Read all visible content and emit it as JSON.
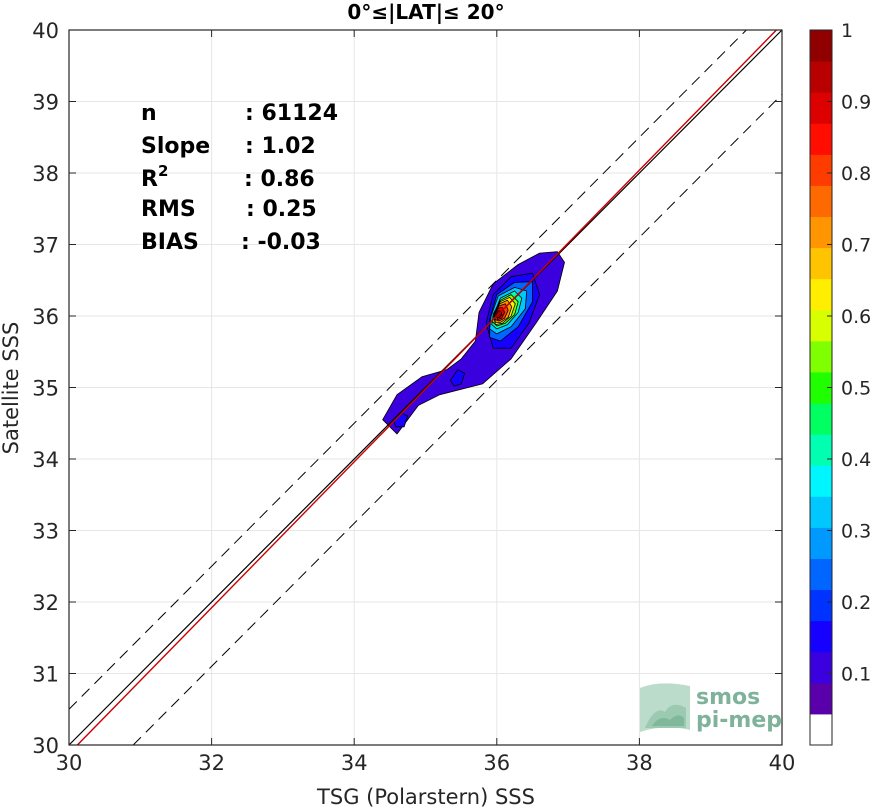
{
  "chart_data": {
    "type": "heatmap",
    "title": "0°≤|LAT|≤ 20°",
    "xlabel": "TSG (Polarstern) SSS",
    "ylabel": "Satellite SSS",
    "xlim": [
      30,
      40
    ],
    "ylim": [
      30,
      40
    ],
    "xticks": [
      30,
      32,
      34,
      36,
      38,
      40
    ],
    "yticks": [
      30,
      31,
      32,
      33,
      34,
      35,
      36,
      37,
      38,
      39,
      40
    ],
    "grid": true,
    "statistics": [
      {
        "name": "n",
        "value": ": 61124"
      },
      {
        "name": "Slope",
        "value": ": 1.02"
      },
      {
        "name": "R",
        "sup": "2",
        "value": ": 0.86"
      },
      {
        "name": "RMS",
        "value": ": 0.25"
      },
      {
        "name": "BIAS",
        "value": ": -0.03"
      }
    ],
    "reference_lines": [
      {
        "type": "identity",
        "slope": 1,
        "offset": 0,
        "style": "solid-black"
      },
      {
        "type": "regression",
        "slope": 1.02,
        "style": "solid-red"
      },
      {
        "type": "bound",
        "offset": 0.5,
        "style": "dashed-black"
      },
      {
        "type": "bound",
        "offset": -0.9,
        "style": "dashed-black"
      }
    ],
    "density_peak": {
      "x": 36.02,
      "y": 36.03
    },
    "contour_levels": [
      0.05,
      0.1,
      0.2,
      0.3,
      0.4,
      0.5,
      0.6,
      0.7,
      0.8,
      0.9,
      1.0
    ],
    "contours": [
      {
        "level": 0.05,
        "points": [
          [
            34.4,
            34.55
          ],
          [
            34.6,
            34.9
          ],
          [
            34.95,
            35.15
          ],
          [
            35.3,
            35.25
          ],
          [
            35.5,
            35.4
          ],
          [
            35.7,
            35.65
          ],
          [
            35.75,
            36.05
          ],
          [
            35.95,
            36.45
          ],
          [
            36.3,
            36.72
          ],
          [
            36.6,
            36.88
          ],
          [
            36.85,
            36.9
          ],
          [
            36.95,
            36.75
          ],
          [
            36.85,
            36.35
          ],
          [
            36.55,
            35.9
          ],
          [
            36.2,
            35.4
          ],
          [
            35.8,
            35.05
          ],
          [
            35.2,
            34.9
          ],
          [
            34.9,
            34.75
          ],
          [
            34.6,
            34.35
          ]
        ]
      },
      {
        "level": 0.1,
        "points": [
          [
            35.85,
            35.9
          ],
          [
            35.95,
            36.3
          ],
          [
            36.2,
            36.55
          ],
          [
            36.5,
            36.6
          ],
          [
            36.6,
            36.3
          ],
          [
            36.45,
            35.9
          ],
          [
            36.2,
            35.55
          ],
          [
            35.95,
            35.55
          ]
        ]
      },
      {
        "level": 0.2,
        "points": [
          [
            35.9,
            35.95
          ],
          [
            36.0,
            36.3
          ],
          [
            36.25,
            36.47
          ],
          [
            36.5,
            36.48
          ],
          [
            36.5,
            36.2
          ],
          [
            36.3,
            35.85
          ],
          [
            36.05,
            35.65
          ],
          [
            35.9,
            35.7
          ]
        ]
      },
      {
        "level": 0.3,
        "points": [
          [
            35.92,
            36.0
          ],
          [
            36.02,
            36.28
          ],
          [
            36.25,
            36.4
          ],
          [
            36.42,
            36.35
          ],
          [
            36.4,
            36.1
          ],
          [
            36.2,
            35.85
          ],
          [
            36.0,
            35.75
          ],
          [
            35.9,
            35.82
          ]
        ]
      },
      {
        "level": 0.4,
        "points": [
          [
            35.95,
            36.0
          ],
          [
            36.05,
            36.25
          ],
          [
            36.25,
            36.35
          ],
          [
            36.35,
            36.25
          ],
          [
            36.3,
            36.05
          ],
          [
            36.15,
            35.88
          ],
          [
            36.0,
            35.82
          ],
          [
            35.93,
            35.88
          ]
        ]
      },
      {
        "level": 0.5,
        "points": [
          [
            35.95,
            36.02
          ],
          [
            36.05,
            36.22
          ],
          [
            36.2,
            36.3
          ],
          [
            36.3,
            36.2
          ],
          [
            36.25,
            36.02
          ],
          [
            36.12,
            35.9
          ],
          [
            36.0,
            35.86
          ],
          [
            35.94,
            35.92
          ]
        ]
      },
      {
        "level": 0.6,
        "points": [
          [
            35.95,
            36.03
          ],
          [
            36.05,
            36.2
          ],
          [
            36.18,
            36.26
          ],
          [
            36.26,
            36.17
          ],
          [
            36.2,
            36.0
          ],
          [
            36.08,
            35.9
          ],
          [
            35.98,
            35.88
          ]
        ]
      },
      {
        "level": 0.7,
        "points": [
          [
            35.96,
            36.03
          ],
          [
            36.04,
            36.17
          ],
          [
            36.15,
            36.22
          ],
          [
            36.21,
            36.13
          ],
          [
            36.16,
            35.98
          ],
          [
            36.05,
            35.91
          ],
          [
            35.98,
            35.91
          ]
        ]
      },
      {
        "level": 0.8,
        "points": [
          [
            35.97,
            36.03
          ],
          [
            36.03,
            36.14
          ],
          [
            36.12,
            36.17
          ],
          [
            36.16,
            36.08
          ],
          [
            36.11,
            35.97
          ],
          [
            36.03,
            35.93
          ],
          [
            35.98,
            35.95
          ]
        ]
      },
      {
        "level": 0.9,
        "points": [
          [
            35.98,
            36.03
          ],
          [
            36.02,
            36.11
          ],
          [
            36.08,
            36.12
          ],
          [
            36.11,
            36.05
          ],
          [
            36.07,
            35.97
          ],
          [
            36.01,
            35.95
          ]
        ]
      },
      {
        "level": 1.0,
        "points": [
          [
            35.99,
            36.02
          ],
          [
            36.02,
            36.07
          ],
          [
            36.06,
            36.07
          ],
          [
            36.07,
            36.02
          ],
          [
            36.04,
            35.98
          ],
          [
            36.0,
            35.98
          ]
        ]
      }
    ],
    "secondary_blobs": [
      {
        "level": 0.1,
        "points": [
          [
            34.55,
            34.55
          ],
          [
            34.65,
            34.65
          ],
          [
            34.75,
            34.6
          ],
          [
            34.7,
            34.45
          ],
          [
            34.58,
            34.45
          ]
        ]
      },
      {
        "level": 0.1,
        "points": [
          [
            35.35,
            35.1
          ],
          [
            35.45,
            35.25
          ],
          [
            35.55,
            35.2
          ],
          [
            35.5,
            35.05
          ],
          [
            35.4,
            35.02
          ]
        ]
      }
    ],
    "colorbar": {
      "min": 0,
      "max": 1,
      "ticks": [
        0.1,
        0.2,
        0.3,
        0.4,
        0.5,
        0.6,
        0.7,
        0.8,
        0.9,
        1
      ],
      "tick_labels": [
        "0.1",
        "0.2",
        "0.3",
        "0.4",
        "0.5",
        "0.6",
        "0.7",
        "0.8",
        "0.9",
        "1"
      ],
      "colors": [
        "#ffffff",
        "#5a00aa",
        "#3a00dd",
        "#1600ff",
        "#0033ff",
        "#0066ff",
        "#0099ff",
        "#00c8ff",
        "#00f6ff",
        "#00ffb0",
        "#00ff60",
        "#20ff00",
        "#80ff00",
        "#d8ff00",
        "#ffee00",
        "#ffc400",
        "#ff9500",
        "#ff6a00",
        "#ff3c00",
        "#ff0d00",
        "#dd0000",
        "#b80000",
        "#900000"
      ]
    },
    "logo": {
      "line1": "smos",
      "line2": "pi-mep"
    }
  }
}
